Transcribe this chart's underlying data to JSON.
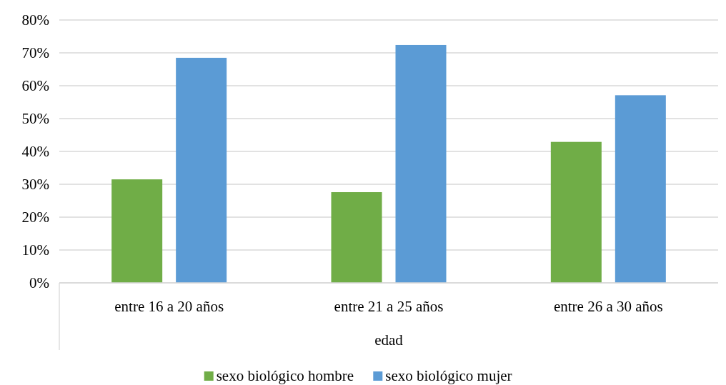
{
  "chart_data": {
    "type": "bar",
    "xlabel": "edad",
    "categories": [
      "entre 16 a 20 años",
      "entre 21 a 25 años",
      "entre 26 a 30 años"
    ],
    "series": [
      {
        "name": "sexo biológico hombre",
        "color": "#70ad47",
        "values": [
          31.5,
          27.6,
          42.9
        ]
      },
      {
        "name": "sexo biológico mujer",
        "color": "#5b9bd5",
        "values": [
          68.5,
          72.4,
          57.1
        ]
      }
    ],
    "ylim": [
      0,
      80
    ],
    "yticks": [
      {
        "value": 0,
        "label": "0%"
      },
      {
        "value": 10,
        "label": "10%"
      },
      {
        "value": 20,
        "label": "20%"
      },
      {
        "value": 30,
        "label": "30%"
      },
      {
        "value": 40,
        "label": "40%"
      },
      {
        "value": 50,
        "label": "50%"
      },
      {
        "value": 60,
        "label": "60%"
      },
      {
        "value": 70,
        "label": "70%"
      },
      {
        "value": 80,
        "label": "80%"
      }
    ],
    "grid": "y",
    "legend": "bottom"
  }
}
